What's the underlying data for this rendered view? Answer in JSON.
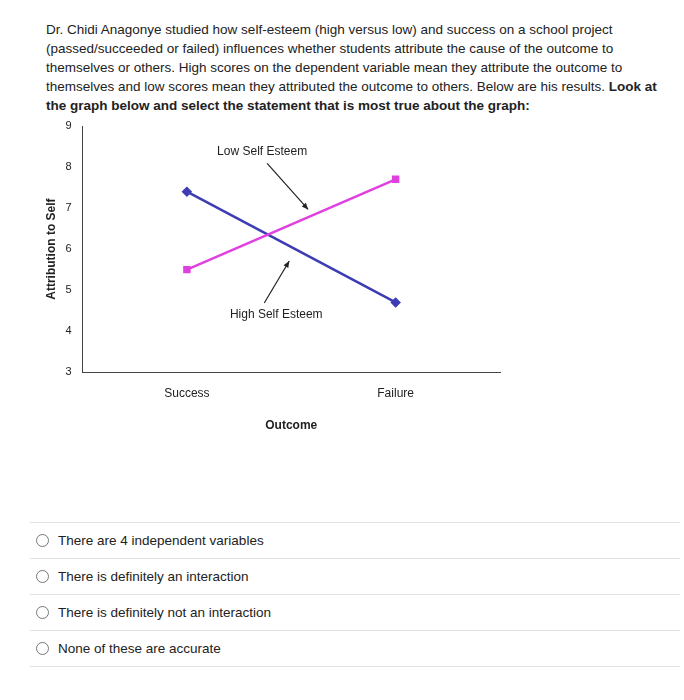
{
  "question": {
    "text": "Dr. Chidi Anagonye studied how self-esteem (high versus low) and success on a school project (passed/succeeded or failed) influences whether students attribute the cause of the outcome to themselves or others. High scores on the dependent variable mean they attribute the outcome to themselves and low scores mean they attributed the outcome to others. Below are his results.",
    "instruction": "Look at the graph below and select the statement that is most true about the graph:"
  },
  "chart_data": {
    "type": "line",
    "x_label": "Outcome",
    "y_label": "Attribution to Self",
    "categories": [
      "Success",
      "Failure"
    ],
    "series": [
      {
        "name": "Low Self Esteem",
        "color": "#e040e0",
        "marker": "square",
        "values": [
          5.5,
          7.7
        ]
      },
      {
        "name": "High Self Esteem",
        "color": "#3c3cb4",
        "marker": "diamond",
        "values": [
          7.4,
          4.7
        ]
      }
    ],
    "ylim": [
      3,
      9
    ],
    "yticks": [
      3,
      4,
      5,
      6,
      7,
      8,
      9
    ],
    "grid": false
  },
  "options": [
    "There are 4 independent variables",
    "There is definitely an interaction",
    "There is definitely not an interaction",
    "None of these are accurate"
  ]
}
